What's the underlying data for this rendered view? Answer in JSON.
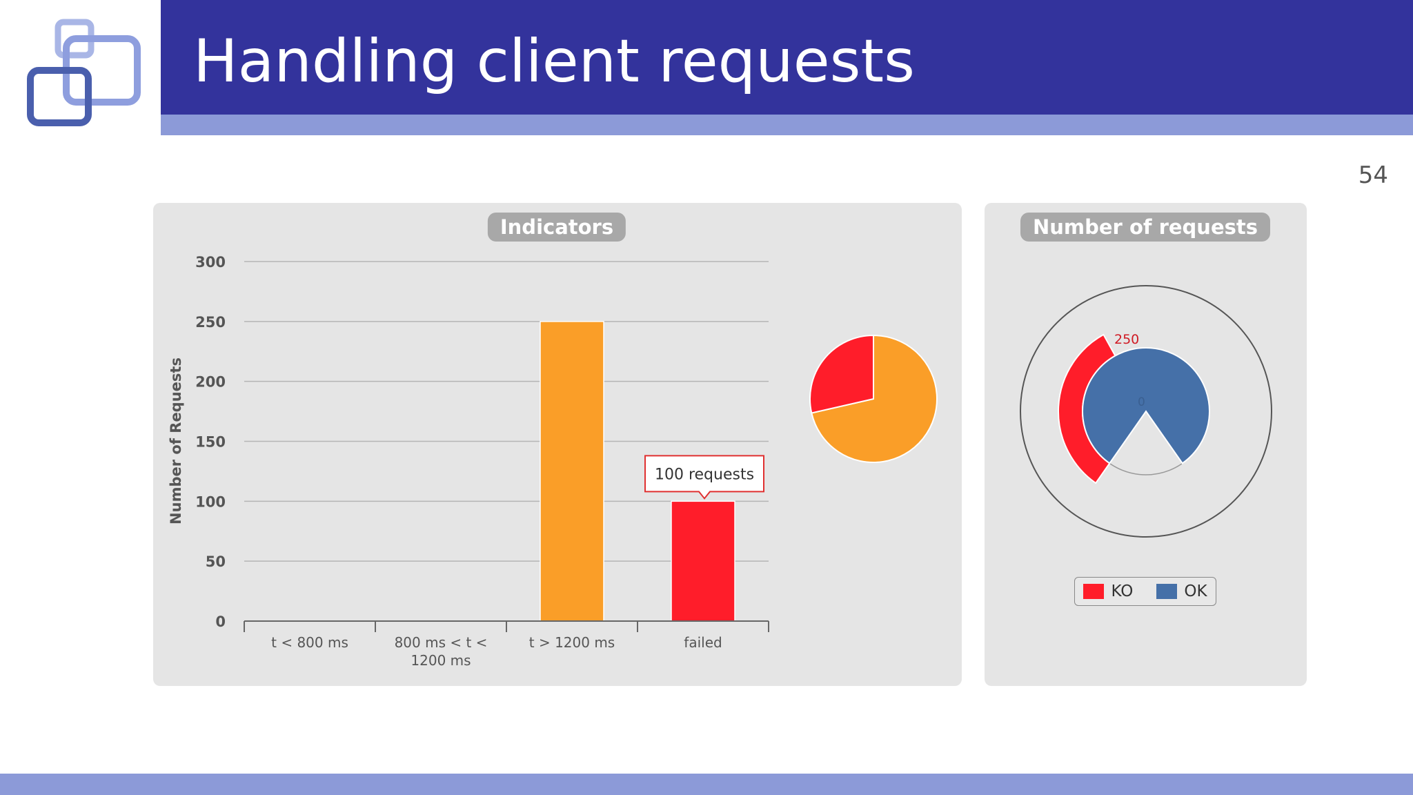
{
  "header": {
    "title": "Handling client requests"
  },
  "page_number": "54",
  "colors": {
    "header": "#33339c",
    "accent": "#8c9ad8",
    "orange": "#fa9e28",
    "red": "#ff1d2a",
    "blue": "#4570a8",
    "panel": "#e5e5e5"
  },
  "chart_data": [
    {
      "type": "bar",
      "title": "Indicators",
      "categories": [
        "t < 800 ms",
        "800 ms < t < 1200 ms",
        "t > 1200 ms",
        "failed"
      ],
      "category_label_lines": [
        [
          "t < 800 ms"
        ],
        [
          "800 ms < t <",
          "1200 ms"
        ],
        [
          "t > 1200 ms"
        ],
        [
          "failed"
        ]
      ],
      "values": [
        0,
        0,
        250,
        100
      ],
      "colors": [
        "#fa9e28",
        "#fa9e28",
        "#fa9e28",
        "#ff1d2a"
      ],
      "ylabel": "Number of Requests",
      "ylim": [
        0,
        300
      ],
      "yticks": [
        0,
        50,
        100,
        150,
        200,
        250,
        300
      ],
      "grid": true,
      "tooltip": {
        "category": "failed",
        "text": "100 requests"
      }
    },
    {
      "type": "pie",
      "labels": [
        "t > 1200 ms",
        "failed"
      ],
      "values": [
        250,
        100
      ],
      "colors": [
        "#fa9e28",
        "#ff1d2a"
      ]
    },
    {
      "type": "gauge",
      "title": "Number of requests",
      "series": [
        {
          "name": "KO",
          "value": 100,
          "color": "#ff1d2a"
        },
        {
          "name": "OK",
          "value": 250,
          "color": "#4570a8"
        }
      ],
      "range": [
        0,
        250
      ],
      "tick_labels": [
        "0",
        "250"
      ],
      "legend": "bottom"
    }
  ]
}
